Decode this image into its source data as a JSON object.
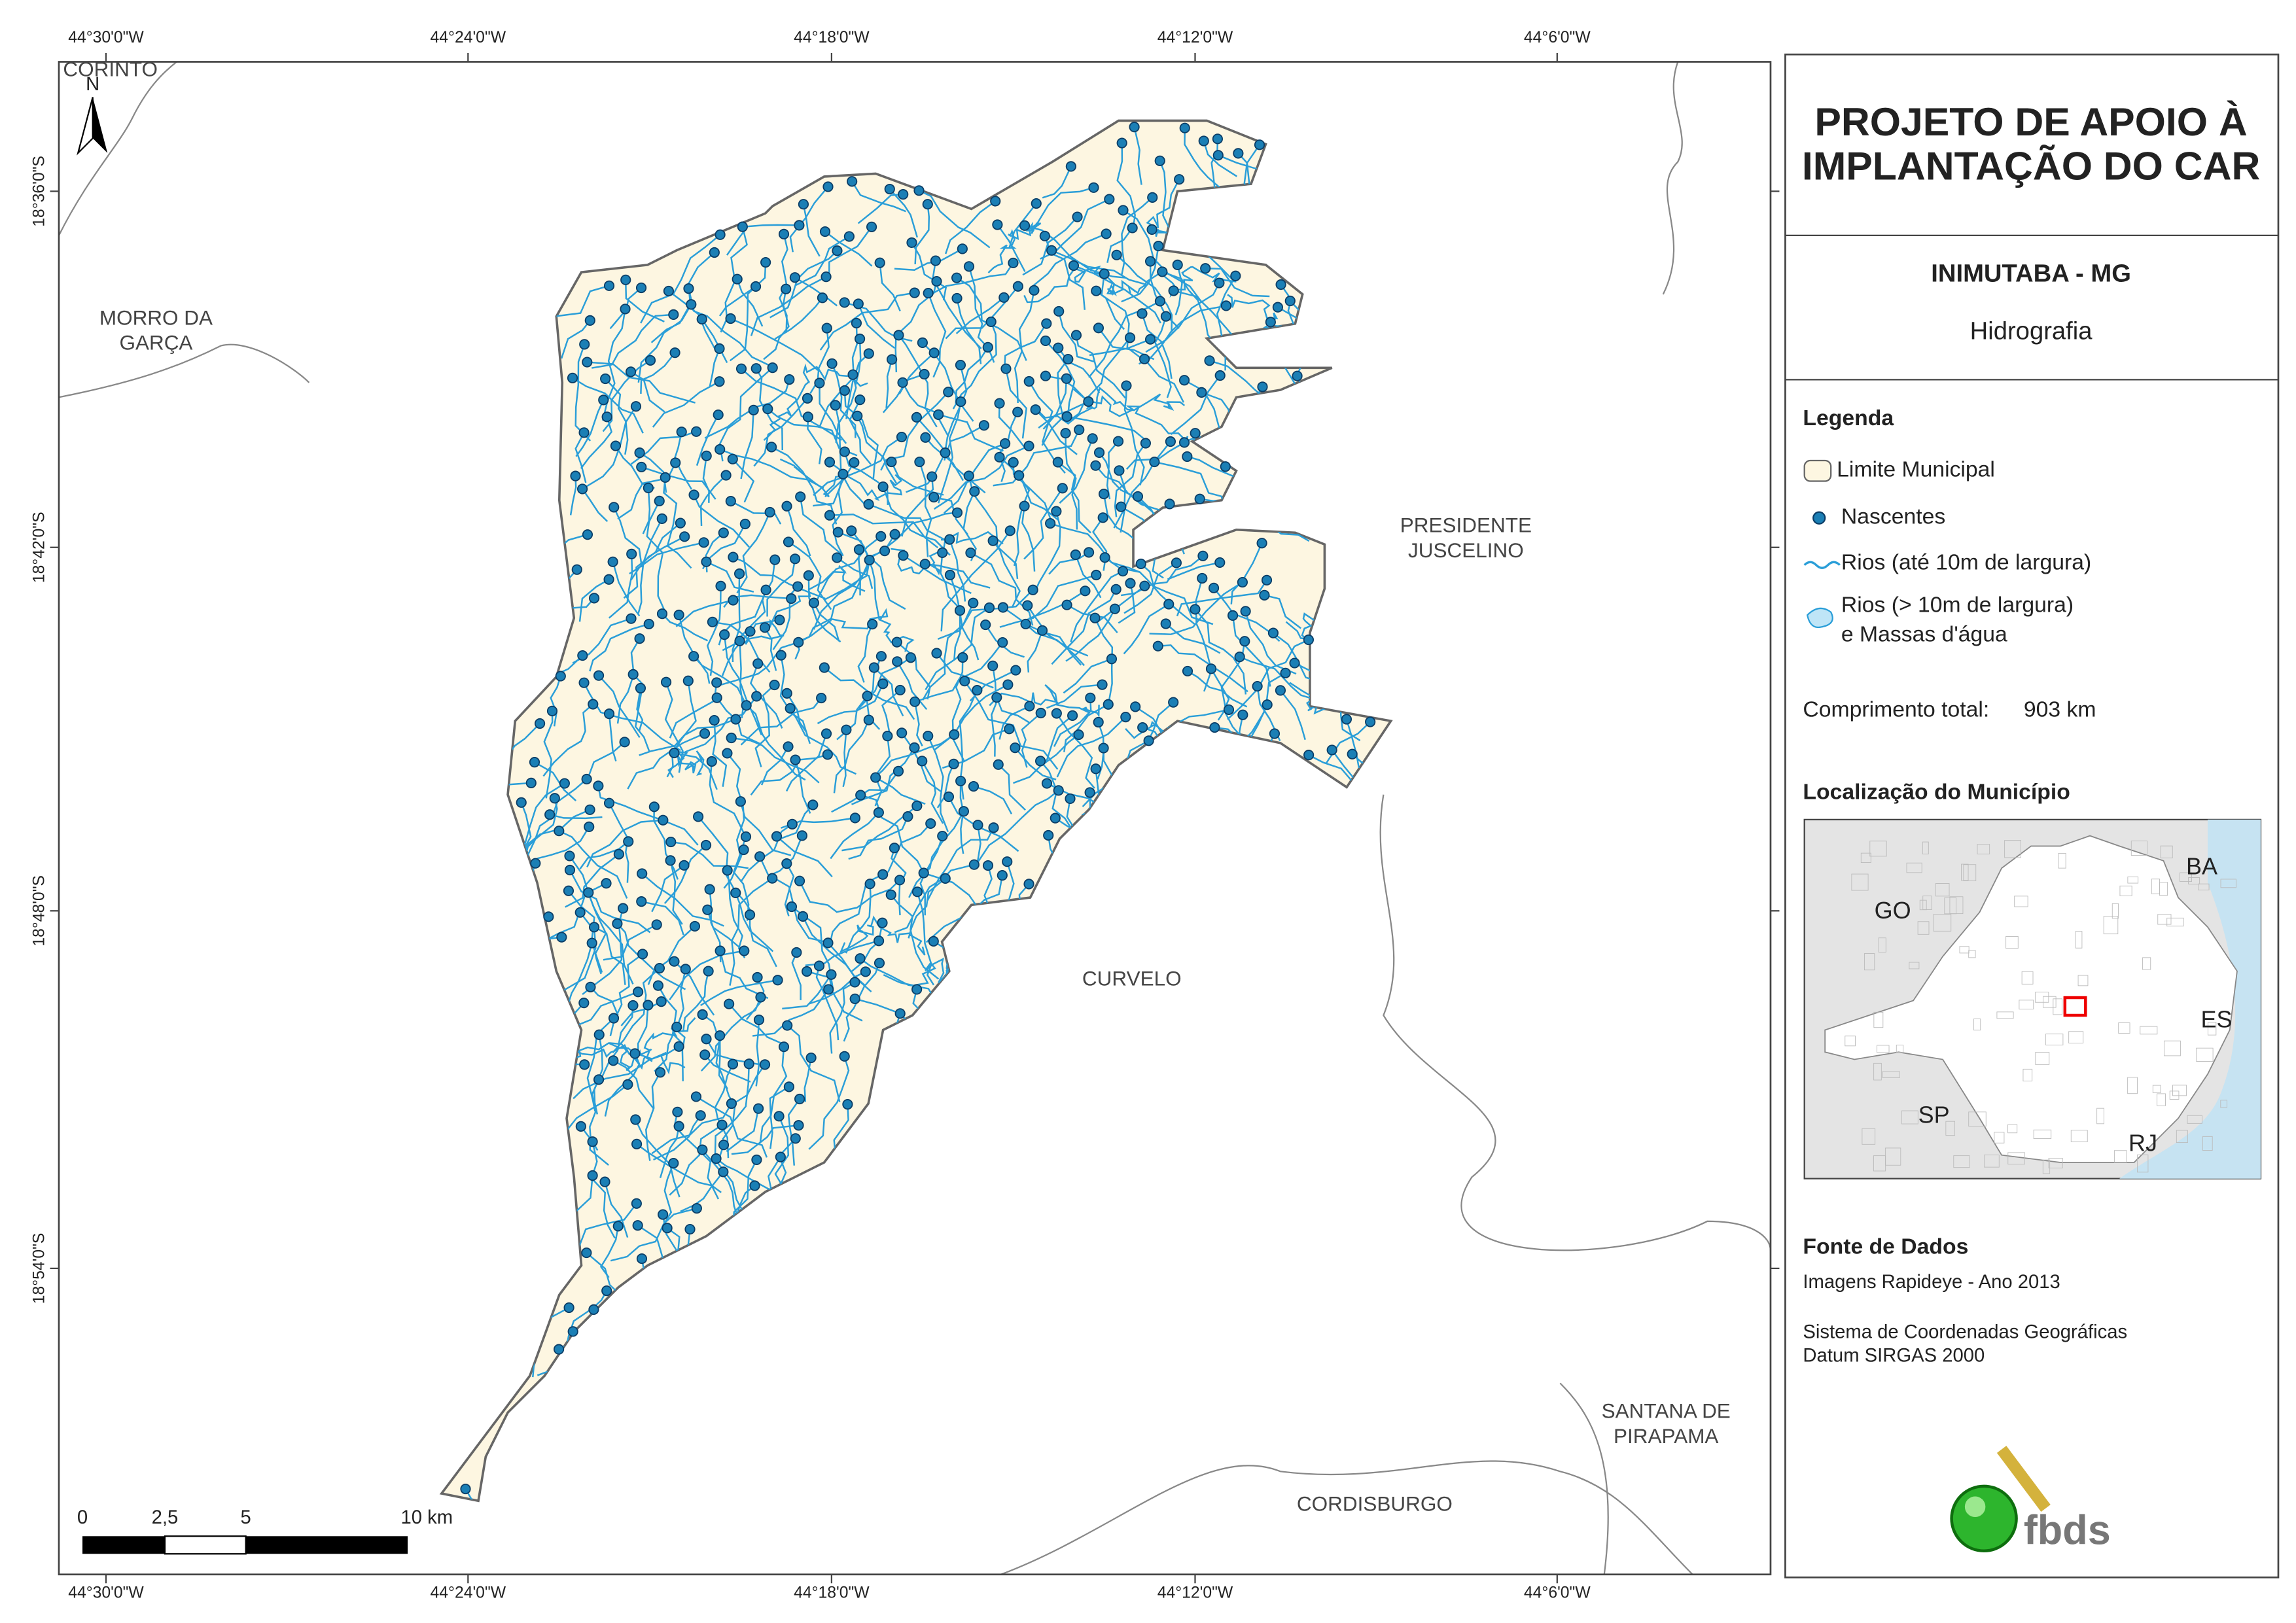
{
  "map": {
    "longitudes": [
      "44°30'0\"W",
      "44°24'0\"W",
      "44°18'0\"W",
      "44°12'0\"W",
      "44°6'0\"W"
    ],
    "latitudes": [
      "18°36'0\"S",
      "18°42'0\"S",
      "18°48'0\"S",
      "18°54'0\"S"
    ],
    "places": [
      [
        "CORINTO"
      ],
      [
        "MORRO DA",
        "GARÇA"
      ],
      [
        "PRESIDENTE",
        "JUSCELINO"
      ],
      [
        "CURVELO"
      ],
      [
        "SANTANA DE",
        "PIRAPAMA"
      ],
      [
        "CORDISBURGO"
      ]
    ],
    "north": "N",
    "scale_labels": [
      "0",
      "2,5",
      "5",
      "10 km"
    ]
  },
  "panel": {
    "title": [
      "PROJETO DE APOIO À",
      "IMPLANTAÇÃO DO CAR"
    ],
    "municipality": "INIMUTABA - MG",
    "theme": "Hidrografia",
    "legend_title": "Legenda",
    "legend": [
      [
        "Limite Municipal"
      ],
      [
        "Nascentes"
      ],
      [
        "Rios (até 10m de largura)"
      ],
      [
        "Rios (> 10m de largura)",
        "e Massas d'água"
      ]
    ],
    "length_label": "Comprimento total:",
    "length": "903 km",
    "location_title": "Localização do Município",
    "states": [
      "GO",
      "BA",
      "ES",
      "SP",
      "RJ"
    ],
    "source_title": "Fonte de Dados",
    "source_lines": [
      "Imagens Rapideye - Ano 2013",
      "Sistema de Coordenadas Geográficas",
      "Datum SIRGAS 2000"
    ],
    "logo": "fbds"
  }
}
